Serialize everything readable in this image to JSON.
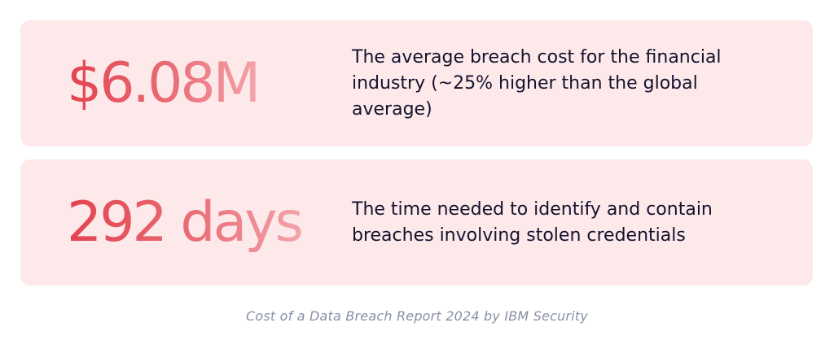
{
  "stats": [
    {
      "value": "$6.08M",
      "description": "The average breach cost for the financial industry (~25% higher than the global average)"
    },
    {
      "value": "292 days",
      "description": "The time needed to identify and contain breaches involving stolen credentials"
    }
  ],
  "source": "Cost of a Data Breach Report 2024 by IBM Security",
  "colors": {
    "card_background": "#fde9ea",
    "stat_gradient_start": "#e2434f",
    "stat_gradient_end": "#f3a4ab",
    "description_text": "#14132e",
    "source_text": "#8a8fa8"
  }
}
